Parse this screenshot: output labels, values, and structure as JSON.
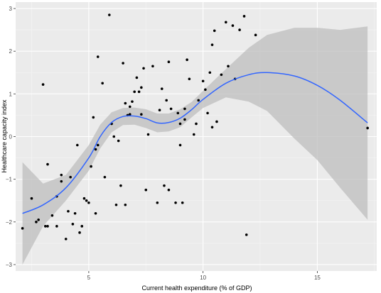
{
  "chart_data": {
    "type": "scatter",
    "title": "",
    "xlabel": "Current health expenditure (% of GDP)",
    "ylabel": "Healthcare capacity index",
    "xlim": [
      1.8,
      17.6
    ],
    "ylim": [
      -3.15,
      3.15
    ],
    "x_ticks": [
      5,
      10,
      15
    ],
    "y_ticks": [
      -3,
      -2,
      -1,
      0,
      1,
      2,
      3
    ],
    "grid": true,
    "legend": "none",
    "colors": {
      "panel_background": "#ebebeb",
      "grid_major": "#ffffff",
      "grid_minor": "#f5f5f5",
      "points": "#000000",
      "smooth_line": "#3366ff",
      "confidence_band": "#bdbdbd"
    },
    "points": [
      {
        "x": 2.1,
        "y": -2.15
      },
      {
        "x": 2.5,
        "y": -1.45
      },
      {
        "x": 2.7,
        "y": -2.0
      },
      {
        "x": 2.8,
        "y": -1.95
      },
      {
        "x": 3.0,
        "y": 1.22
      },
      {
        "x": 3.1,
        "y": -2.1
      },
      {
        "x": 3.2,
        "y": -2.1
      },
      {
        "x": 3.2,
        "y": -0.65
      },
      {
        "x": 3.4,
        "y": -1.85
      },
      {
        "x": 3.6,
        "y": -1.4
      },
      {
        "x": 3.6,
        "y": -2.1
      },
      {
        "x": 3.8,
        "y": -1.05
      },
      {
        "x": 3.8,
        "y": -0.9
      },
      {
        "x": 4.0,
        "y": -2.4
      },
      {
        "x": 4.1,
        "y": -1.75
      },
      {
        "x": 4.2,
        "y": -0.95
      },
      {
        "x": 4.3,
        "y": -2.05
      },
      {
        "x": 4.4,
        "y": -1.8
      },
      {
        "x": 4.5,
        "y": -0.2
      },
      {
        "x": 4.6,
        "y": -2.25
      },
      {
        "x": 4.7,
        "y": -2.1
      },
      {
        "x": 4.8,
        "y": -1.45
      },
      {
        "x": 4.9,
        "y": -1.5
      },
      {
        "x": 5.0,
        "y": -1.55
      },
      {
        "x": 5.1,
        "y": -0.7
      },
      {
        "x": 5.2,
        "y": 0.45
      },
      {
        "x": 5.3,
        "y": -0.3
      },
      {
        "x": 5.3,
        "y": -1.8
      },
      {
        "x": 5.4,
        "y": -0.2
      },
      {
        "x": 5.4,
        "y": 1.87
      },
      {
        "x": 5.6,
        "y": 1.25
      },
      {
        "x": 5.7,
        "y": -0.95
      },
      {
        "x": 5.9,
        "y": 2.85
      },
      {
        "x": 6.0,
        "y": 0.3
      },
      {
        "x": 6.1,
        "y": 0.0
      },
      {
        "x": 6.2,
        "y": -1.6
      },
      {
        "x": 6.3,
        "y": -0.1
      },
      {
        "x": 6.4,
        "y": -1.15
      },
      {
        "x": 6.5,
        "y": 1.72
      },
      {
        "x": 6.6,
        "y": 0.78
      },
      {
        "x": 6.6,
        "y": -1.6
      },
      {
        "x": 6.7,
        "y": 0.5
      },
      {
        "x": 6.8,
        "y": 0.7
      },
      {
        "x": 6.8,
        "y": 0.52
      },
      {
        "x": 6.9,
        "y": 0.82
      },
      {
        "x": 7.0,
        "y": 1.05
      },
      {
        "x": 7.1,
        "y": 1.38
      },
      {
        "x": 7.2,
        "y": 1.05
      },
      {
        "x": 7.3,
        "y": 1.15
      },
      {
        "x": 7.3,
        "y": 0.52
      },
      {
        "x": 7.4,
        "y": 1.6
      },
      {
        "x": 7.5,
        "y": -1.25
      },
      {
        "x": 7.6,
        "y": 0.05
      },
      {
        "x": 7.8,
        "y": 1.65
      },
      {
        "x": 8.0,
        "y": -1.55
      },
      {
        "x": 8.1,
        "y": 0.62
      },
      {
        "x": 8.2,
        "y": 1.12
      },
      {
        "x": 8.3,
        "y": -1.15
      },
      {
        "x": 8.4,
        "y": 0.85
      },
      {
        "x": 8.5,
        "y": 1.75
      },
      {
        "x": 8.5,
        "y": -1.25
      },
      {
        "x": 8.6,
        "y": 0.65
      },
      {
        "x": 8.8,
        "y": -1.55
      },
      {
        "x": 8.9,
        "y": 0.55
      },
      {
        "x": 9.0,
        "y": -0.2
      },
      {
        "x": 9.0,
        "y": 0.3
      },
      {
        "x": 9.1,
        "y": -1.55
      },
      {
        "x": 9.2,
        "y": 0.4
      },
      {
        "x": 9.2,
        "y": 0.65
      },
      {
        "x": 9.3,
        "y": 1.8
      },
      {
        "x": 9.4,
        "y": 1.35
      },
      {
        "x": 9.6,
        "y": 0.05
      },
      {
        "x": 9.7,
        "y": 0.3
      },
      {
        "x": 9.8,
        "y": 0.85
      },
      {
        "x": 10.0,
        "y": 1.3
      },
      {
        "x": 10.1,
        "y": 1.1
      },
      {
        "x": 10.2,
        "y": 0.55
      },
      {
        "x": 10.3,
        "y": 1.5
      },
      {
        "x": 10.4,
        "y": 2.15
      },
      {
        "x": 10.4,
        "y": 0.22
      },
      {
        "x": 10.5,
        "y": 2.48
      },
      {
        "x": 10.6,
        "y": 0.35
      },
      {
        "x": 10.8,
        "y": 1.45
      },
      {
        "x": 11.0,
        "y": 2.68
      },
      {
        "x": 11.1,
        "y": 1.65
      },
      {
        "x": 11.3,
        "y": 2.6
      },
      {
        "x": 11.4,
        "y": 1.35
      },
      {
        "x": 11.6,
        "y": 2.5
      },
      {
        "x": 11.8,
        "y": 2.82
      },
      {
        "x": 11.9,
        "y": -2.3
      },
      {
        "x": 12.3,
        "y": 2.38
      },
      {
        "x": 17.2,
        "y": 0.2
      }
    ],
    "smooth_fit": {
      "method": "loess",
      "x": [
        2.1,
        3.0,
        4.0,
        5.0,
        5.5,
        6.0,
        6.5,
        7.0,
        7.5,
        8.0,
        8.5,
        9.0,
        9.5,
        10.0,
        11.0,
        12.0,
        12.8,
        14.0,
        15.0,
        16.0,
        17.2
      ],
      "y": [
        -1.8,
        -1.6,
        -1.2,
        -0.5,
        0.0,
        0.33,
        0.47,
        0.48,
        0.42,
        0.32,
        0.33,
        0.43,
        0.63,
        0.87,
        1.25,
        1.45,
        1.5,
        1.42,
        1.2,
        0.85,
        0.32
      ],
      "lower": [
        -3.0,
        -2.1,
        -1.5,
        -0.8,
        -0.28,
        0.1,
        0.27,
        0.28,
        0.2,
        0.1,
        0.12,
        0.22,
        0.45,
        0.67,
        0.92,
        0.82,
        0.6,
        -0.05,
        -0.55,
        -1.2,
        -1.95
      ],
      "upper": [
        -0.6,
        -1.1,
        -0.9,
        -0.2,
        0.28,
        0.57,
        0.67,
        0.68,
        0.64,
        0.54,
        0.54,
        0.64,
        0.81,
        1.07,
        1.58,
        2.08,
        2.38,
        2.55,
        2.55,
        2.5,
        2.58
      ]
    }
  }
}
